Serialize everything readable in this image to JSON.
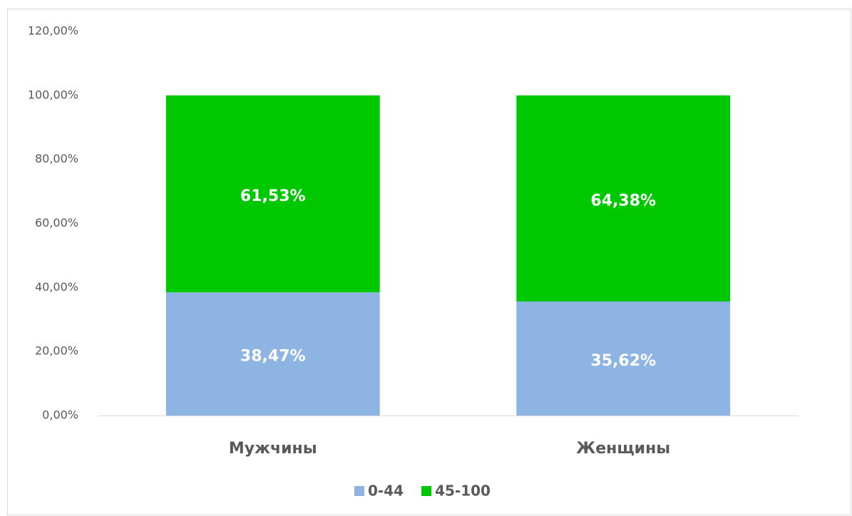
{
  "chart_data": {
    "type": "stacked_bar",
    "categories": [
      "Мужчины",
      "Женщины"
    ],
    "series": [
      {
        "name": "0-44",
        "color": "#8db4e2",
        "values": [
          38.47,
          35.62
        ],
        "value_labels": [
          "38,47%",
          "35,62%"
        ]
      },
      {
        "name": "45-100",
        "color": "#00c800",
        "values": [
          61.53,
          64.38
        ],
        "value_labels": [
          "61,53%",
          "64,38%"
        ]
      }
    ],
    "ylim": [
      0,
      120
    ],
    "yticks": [
      {
        "value": 0,
        "label": "0,00%"
      },
      {
        "value": 20,
        "label": "20,00%"
      },
      {
        "value": 40,
        "label": "40,00%"
      },
      {
        "value": 60,
        "label": "60,00%"
      },
      {
        "value": 80,
        "label": "80,00%"
      },
      {
        "value": 100,
        "label": "100,00%"
      },
      {
        "value": 120,
        "label": "120,00%"
      }
    ],
    "grid": false,
    "legend": "bottom"
  }
}
